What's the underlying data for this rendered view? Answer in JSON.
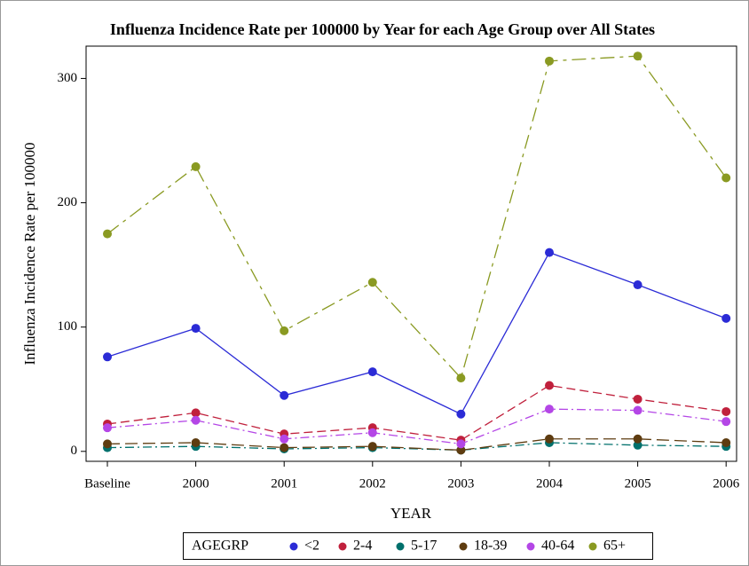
{
  "chart_data": {
    "type": "line",
    "title": "Influenza Incidence Rate per 100000 by Year for each Age Group over All States",
    "x_label": "YEAR",
    "y_label": "Influenza Incidence Rate per 100000",
    "legend_title": "AGEGRP",
    "legend_position": "bottom",
    "categories": [
      "Baseline",
      "2000",
      "2001",
      "2002",
      "2003",
      "2004",
      "2005",
      "2006"
    ],
    "ylim": [
      -8,
      326
    ],
    "yticks": [
      0,
      100,
      200,
      300
    ],
    "series": [
      {
        "name": "<2",
        "color": "#2b2bd6",
        "values": [
          76,
          99,
          45,
          64,
          30,
          160,
          134,
          107
        ]
      },
      {
        "name": "2-4",
        "color": "#c0203c",
        "values": [
          22,
          31,
          14,
          19,
          9,
          53,
          42,
          32
        ]
      },
      {
        "name": "5-17",
        "color": "#00706c",
        "values": [
          3,
          4,
          2,
          3,
          1,
          7,
          5,
          4
        ]
      },
      {
        "name": "18-39",
        "color": "#5e3c10",
        "values": [
          6,
          7,
          3,
          4,
          1,
          10,
          10,
          7
        ]
      },
      {
        "name": "40-64",
        "color": "#b446e6",
        "values": [
          19,
          25,
          10,
          15,
          6,
          34,
          33,
          24
        ]
      },
      {
        "name": "65+",
        "color": "#8a9a22",
        "values": [
          175,
          229,
          97,
          136,
          59,
          314,
          318,
          220
        ]
      }
    ]
  }
}
